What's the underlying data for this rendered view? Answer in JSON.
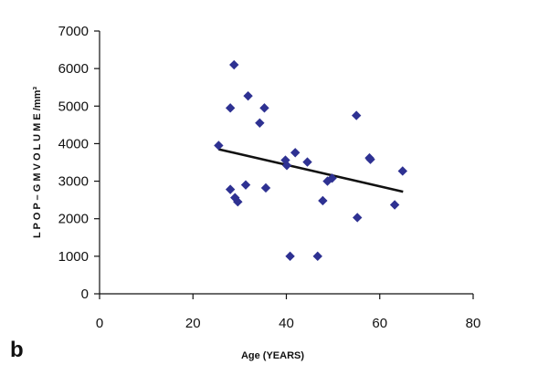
{
  "panel_label": "b",
  "chart_data": {
    "type": "scatter",
    "xlabel": "Age (YEARS)",
    "ylabel": "L P O P – G M  V O L U M E /mm³",
    "xlim": [
      0,
      80
    ],
    "ylim": [
      0,
      7000
    ],
    "xticks": [
      0,
      20,
      40,
      60,
      80
    ],
    "yticks": [
      0,
      1000,
      2000,
      3000,
      4000,
      5000,
      6000,
      7000
    ],
    "grid": false,
    "marker": "diamond",
    "marker_color": "#2E3192",
    "points": [
      {
        "x": 25.5,
        "y": 3950
      },
      {
        "x": 28.0,
        "y": 4950
      },
      {
        "x": 28.0,
        "y": 2780
      },
      {
        "x": 28.8,
        "y": 6100
      },
      {
        "x": 29.0,
        "y": 2560
      },
      {
        "x": 29.6,
        "y": 2450
      },
      {
        "x": 31.3,
        "y": 2900
      },
      {
        "x": 31.8,
        "y": 5270
      },
      {
        "x": 34.3,
        "y": 4550
      },
      {
        "x": 35.3,
        "y": 4950
      },
      {
        "x": 35.6,
        "y": 2820
      },
      {
        "x": 39.8,
        "y": 3560
      },
      {
        "x": 40.1,
        "y": 3420
      },
      {
        "x": 40.8,
        "y": 1000
      },
      {
        "x": 41.9,
        "y": 3760
      },
      {
        "x": 44.5,
        "y": 3510
      },
      {
        "x": 46.7,
        "y": 1000
      },
      {
        "x": 47.8,
        "y": 2480
      },
      {
        "x": 48.8,
        "y": 3000
      },
      {
        "x": 49.8,
        "y": 3080
      },
      {
        "x": 55.0,
        "y": 4750
      },
      {
        "x": 55.2,
        "y": 2030
      },
      {
        "x": 57.8,
        "y": 3620
      },
      {
        "x": 58.0,
        "y": 3580
      },
      {
        "x": 63.2,
        "y": 2370
      },
      {
        "x": 64.9,
        "y": 3270
      }
    ],
    "trendline": {
      "x": [
        25.5,
        65.0
      ],
      "y": [
        3850,
        2720
      ],
      "color": "#111111"
    }
  }
}
